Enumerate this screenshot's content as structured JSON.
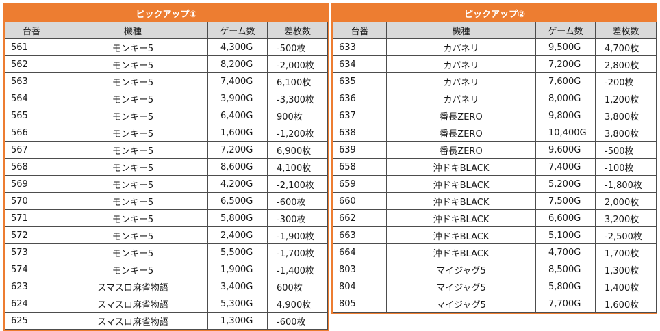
{
  "tables": [
    {
      "title": "ピックアップ①",
      "headers": [
        "台番",
        "機種",
        "ゲーム数",
        "差枚数"
      ],
      "rows": [
        [
          "561",
          "モンキー5",
          "4,300G",
          "-500枚"
        ],
        [
          "562",
          "モンキー5",
          "8,200G",
          "-2,000枚"
        ],
        [
          "563",
          "モンキー5",
          "7,400G",
          "6,100枚"
        ],
        [
          "564",
          "モンキー5",
          "3,900G",
          "-3,300枚"
        ],
        [
          "565",
          "モンキー5",
          "6,400G",
          "900枚"
        ],
        [
          "566",
          "モンキー5",
          "1,600G",
          "-1,200枚"
        ],
        [
          "567",
          "モンキー5",
          "7,200G",
          "6,900枚"
        ],
        [
          "568",
          "モンキー5",
          "8,600G",
          "4,100枚"
        ],
        [
          "569",
          "モンキー5",
          "4,200G",
          "-2,100枚"
        ],
        [
          "570",
          "モンキー5",
          "6,500G",
          "-600枚"
        ],
        [
          "571",
          "モンキー5",
          "5,800G",
          "-300枚"
        ],
        [
          "572",
          "モンキー5",
          "2,400G",
          "-1,900枚"
        ],
        [
          "573",
          "モンキー5",
          "5,500G",
          "-1,700枚"
        ],
        [
          "574",
          "モンキー5",
          "1,900G",
          "-1,400枚"
        ],
        [
          "623",
          "スマスロ麻雀物語",
          "3,400G",
          "600枚"
        ],
        [
          "624",
          "スマスロ麻雀物語",
          "5,300G",
          "4,900枚"
        ],
        [
          "625",
          "スマスロ麻雀物語",
          "1,300G",
          "-600枚"
        ]
      ]
    },
    {
      "title": "ピックアップ②",
      "headers": [
        "台番",
        "機種",
        "ゲーム数",
        "差枚数"
      ],
      "rows": [
        [
          "633",
          "カバネリ",
          "9,500G",
          "4,700枚"
        ],
        [
          "634",
          "カバネリ",
          "7,200G",
          "2,800枚"
        ],
        [
          "635",
          "カバネリ",
          "7,600G",
          "-200枚"
        ],
        [
          "636",
          "カバネリ",
          "8,000G",
          "1,200枚"
        ],
        [
          "637",
          "番長ZERO",
          "9,800G",
          "3,800枚"
        ],
        [
          "638",
          "番長ZERO",
          "10,400G",
          "3,800枚"
        ],
        [
          "639",
          "番長ZERO",
          "9,600G",
          "-500枚"
        ],
        [
          "658",
          "沖ドキBLACK",
          "7,400G",
          "-100枚"
        ],
        [
          "659",
          "沖ドキBLACK",
          "5,200G",
          "-1,800枚"
        ],
        [
          "660",
          "沖ドキBLACK",
          "7,500G",
          "2,000枚"
        ],
        [
          "662",
          "沖ドキBLACK",
          "6,600G",
          "3,200枚"
        ],
        [
          "663",
          "沖ドキBLACK",
          "5,100G",
          "-2,500枚"
        ],
        [
          "664",
          "沖ドキBLACK",
          "4,700G",
          "1,700枚"
        ],
        [
          "803",
          "マイジャグ5",
          "8,500G",
          "1,300枚"
        ],
        [
          "804",
          "マイジャグ5",
          "5,800G",
          "1,400枚"
        ],
        [
          "805",
          "マイジャグ5",
          "7,700G",
          "1,600枚"
        ]
      ]
    }
  ],
  "colors": {
    "title_bg": "#ed7d31",
    "header_bg": "#d9d9d9",
    "border": "#4d4d4d"
  }
}
